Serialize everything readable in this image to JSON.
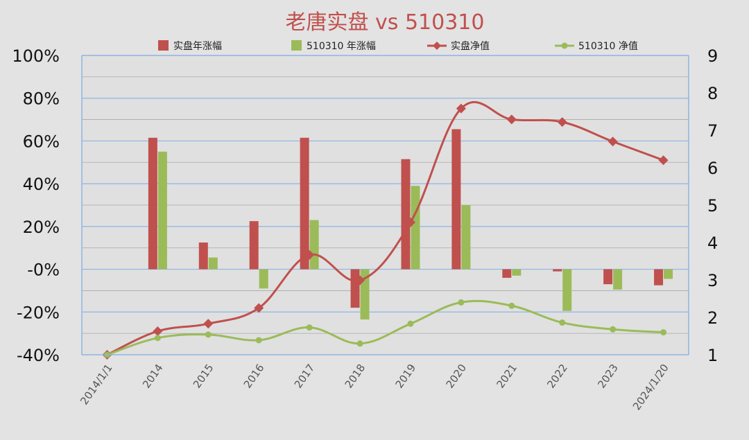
{
  "chart_data": {
    "type": "bar",
    "title": "老唐实盘 vs 510310",
    "categories": [
      "2014/1/1",
      "2014",
      "2015",
      "2016",
      "2017",
      "2018",
      "2019",
      "2020",
      "2021",
      "2022",
      "2023",
      "2024/1/20"
    ],
    "y_left": {
      "ticks": [
        "100%",
        "80%",
        "60%",
        "40%",
        "20%",
        "-0%",
        "-20%",
        "-40%"
      ],
      "range": [
        -40,
        100
      ]
    },
    "y_right": {
      "ticks": [
        "9",
        "8",
        "7",
        "6",
        "5",
        "4",
        "3",
        "2",
        "1"
      ],
      "range": [
        1,
        9
      ]
    },
    "series": [
      {
        "name": "实盘年涨幅",
        "kind": "bar",
        "axis": "left",
        "color": "#c0504d",
        "values": [
          null,
          61.5,
          12.5,
          22.5,
          61.5,
          -18,
          51.5,
          65.5,
          -4,
          -1,
          -7,
          -7.5
        ]
      },
      {
        "name": "510310 年涨幅",
        "kind": "bar",
        "axis": "left",
        "color": "#9bbb59",
        "values": [
          null,
          55,
          5.5,
          -9,
          23,
          -23.5,
          39,
          30,
          -3,
          -19.5,
          -9.5,
          -4.5
        ]
      },
      {
        "name": "实盘净值",
        "kind": "line",
        "axis": "right",
        "color": "#c0504d",
        "marker": "diamond",
        "values": [
          1.0,
          1.63,
          1.83,
          2.25,
          3.67,
          2.99,
          4.54,
          7.58,
          7.29,
          7.22,
          6.7,
          6.2
        ]
      },
      {
        "name": "510310 净值",
        "kind": "line",
        "axis": "right",
        "color": "#9bbb59",
        "marker": "circle",
        "values": [
          1.0,
          1.45,
          1.54,
          1.39,
          1.73,
          1.3,
          1.83,
          2.4,
          2.31,
          1.86,
          1.68,
          1.6
        ]
      }
    ],
    "grid": true,
    "legend": "top"
  }
}
